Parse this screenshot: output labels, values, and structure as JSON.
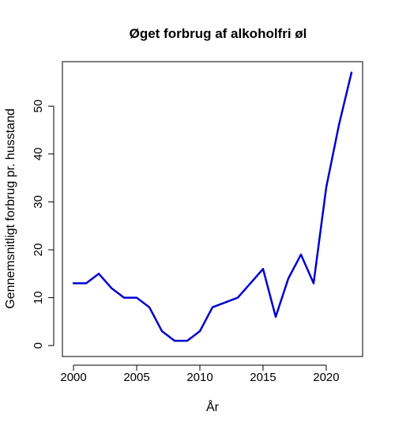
{
  "chart_data": {
    "type": "line",
    "title": "Øget forbrug af alkoholfri øl",
    "xlabel": "År",
    "ylabel": "Gennemsnitligt forbrug pr. husstand",
    "x": [
      2000,
      2001,
      2002,
      2003,
      2004,
      2005,
      2006,
      2007,
      2008,
      2009,
      2010,
      2011,
      2012,
      2013,
      2014,
      2015,
      2016,
      2017,
      2018,
      2019,
      2020,
      2021,
      2022
    ],
    "series": [
      {
        "color": "#0000cd",
        "values": [
          13,
          13,
          15,
          12,
          10,
          10,
          8,
          3,
          1,
          1,
          3,
          8,
          9,
          10,
          13,
          16,
          6,
          14,
          19,
          13,
          33,
          46,
          57
        ]
      }
    ],
    "xticks": [
      2000,
      2005,
      2010,
      2015,
      2020
    ],
    "yticks": [
      0,
      10,
      20,
      30,
      40,
      50
    ],
    "xlim": [
      1999.12,
      2022.88
    ],
    "ylim": [
      -2.28,
      59.28
    ],
    "grid": false,
    "legend": "none"
  }
}
